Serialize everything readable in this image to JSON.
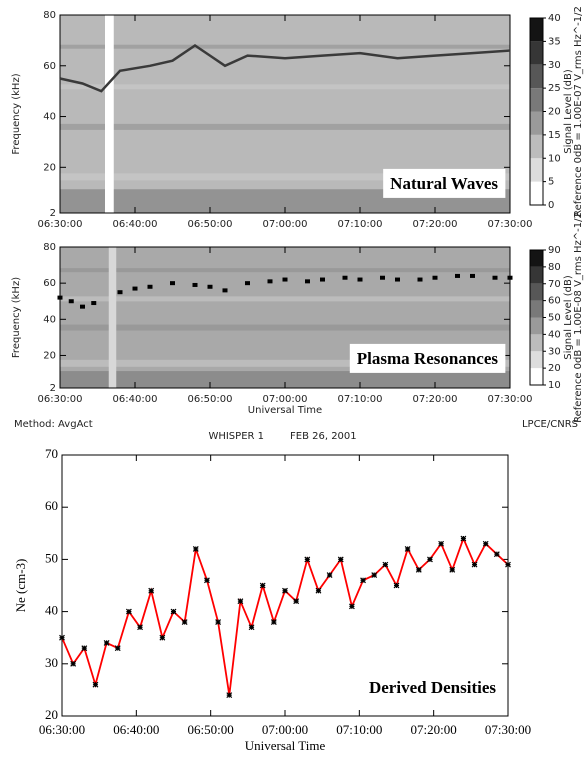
{
  "chart_data": [
    {
      "type": "spectrogram",
      "ylabel": "Frequency (kHz)",
      "annotation": "Natural Waves",
      "xlim": [
        "06:30:00",
        "07:30:00"
      ],
      "xticks": [
        "06:30:00",
        "06:40:00",
        "06:50:00",
        "07:00:00",
        "07:10:00",
        "07:20:00",
        "07:30:00"
      ],
      "ylim": [
        2,
        80
      ],
      "yticks": [
        2,
        20,
        40,
        60,
        80
      ],
      "background": "#b9b9b9",
      "data_gap": [
        "06:36:00",
        "06:37:10"
      ],
      "gap_color": "#ffffff",
      "series": [
        {
          "color": "#3a3a3a",
          "marker": "none",
          "x": [
            "06:30:00",
            "06:33:00",
            "06:35:30",
            "06:38:00",
            "06:42:00",
            "06:45:00",
            "06:48:00",
            "06:50:00",
            "06:52:00",
            "06:55:00",
            "07:00:00",
            "07:05:00",
            "07:10:00",
            "07:15:00",
            "07:20:00",
            "07:25:00",
            "07:30:00"
          ],
          "values": [
            55,
            53,
            50,
            58,
            60,
            62,
            68,
            64,
            60,
            64,
            63,
            64,
            65,
            63,
            64,
            65,
            66
          ]
        }
      ],
      "colorbar": {
        "ticks": [
          0,
          5,
          10,
          15,
          20,
          25,
          30,
          35,
          40
        ],
        "label": "Signal Level (dB)",
        "reference": "Reference 0dB = 1.00E-07 V_rms Hz^-1/2"
      }
    },
    {
      "type": "spectrogram",
      "ylabel": "Frequency (kHz)",
      "annotation": "Plasma Resonances",
      "xlabel": "Universal Time",
      "xlim": [
        "06:30:00",
        "07:30:00"
      ],
      "xticks": [
        "06:30:00",
        "06:40:00",
        "06:50:00",
        "07:00:00",
        "07:10:00",
        "07:20:00",
        "07:30:00"
      ],
      "ylim": [
        2,
        80
      ],
      "yticks": [
        2,
        20,
        40,
        60,
        80
      ],
      "background": "#a9a9a9",
      "data_gap": [
        "06:36:30",
        "06:37:30"
      ],
      "gap_color": "#d8d8d8",
      "series": [
        {
          "color": "#000000",
          "marker": "square",
          "x": [
            "06:30:00",
            "06:31:30",
            "06:33:00",
            "06:34:30",
            "06:38:00",
            "06:40:00",
            "06:42:00",
            "06:45:00",
            "06:48:00",
            "06:50:00",
            "06:52:00",
            "06:55:00",
            "06:58:00",
            "07:00:00",
            "07:03:00",
            "07:05:00",
            "07:08:00",
            "07:10:00",
            "07:13:00",
            "07:15:00",
            "07:18:00",
            "07:20:00",
            "07:23:00",
            "07:25:00",
            "07:28:00",
            "07:30:00"
          ],
          "values": [
            52,
            50,
            47,
            49,
            55,
            57,
            58,
            60,
            59,
            58,
            56,
            60,
            61,
            62,
            61,
            62,
            63,
            62,
            63,
            62,
            62,
            63,
            64,
            64,
            63,
            63
          ]
        }
      ],
      "colorbar": {
        "ticks": [
          10,
          20,
          30,
          40,
          50,
          60,
          70,
          80,
          90
        ],
        "label": "Signal Level (dB)",
        "reference": "Reference 0dB = 1.00E-08 V_rms Hz^-1/2"
      },
      "method": "Method: AvgAct",
      "credit": "LPCE/CNRS",
      "instrument": "WHISPER 1",
      "date": "FEB 26, 2001"
    },
    {
      "type": "line",
      "ylabel": "Ne (cm-3)",
      "xlabel": "Universal Time",
      "annotation": "Derived Densities",
      "xlim": [
        "06:30:00",
        "07:30:00"
      ],
      "xticks": [
        "06:30:00",
        "06:40:00",
        "06:50:00",
        "07:00:00",
        "07:10:00",
        "07:20:00",
        "07:30:00"
      ],
      "ylim": [
        20,
        70
      ],
      "yticks": [
        20,
        30,
        40,
        50,
        60,
        70
      ],
      "series": [
        {
          "color": "#ff0000",
          "marker_color": "#000000",
          "x": [
            "06:30:00",
            "06:31:30",
            "06:33:00",
            "06:34:30",
            "06:36:00",
            "06:37:30",
            "06:39:00",
            "06:40:30",
            "06:42:00",
            "06:43:30",
            "06:45:00",
            "06:46:30",
            "06:48:00",
            "06:49:30",
            "06:51:00",
            "06:52:30",
            "06:54:00",
            "06:55:30",
            "06:57:00",
            "06:58:30",
            "07:00:00",
            "07:01:30",
            "07:03:00",
            "07:04:30",
            "07:06:00",
            "07:07:30",
            "07:09:00",
            "07:10:30",
            "07:12:00",
            "07:13:30",
            "07:15:00",
            "07:16:30",
            "07:18:00",
            "07:19:30",
            "07:21:00",
            "07:22:30",
            "07:24:00",
            "07:25:30",
            "07:27:00",
            "07:28:30",
            "07:30:00"
          ],
          "values": [
            35,
            30,
            33,
            26,
            34,
            33,
            40,
            37,
            44,
            35,
            40,
            38,
            52,
            46,
            38,
            24,
            42,
            37,
            45,
            38,
            44,
            42,
            50,
            44,
            47,
            50,
            41,
            46,
            47,
            49,
            45,
            52,
            48,
            50,
            53,
            48,
            54,
            49,
            53,
            51,
            49
          ]
        }
      ]
    }
  ]
}
